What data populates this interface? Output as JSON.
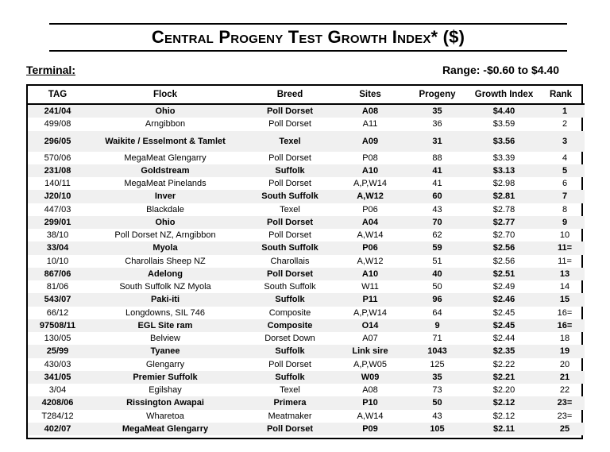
{
  "title": {
    "first_C": "C",
    "word1": "entral",
    "first_P": "P",
    "word2": "rogeny",
    "first_T": "T",
    "word3": "est",
    "first_G": "G",
    "word4": "rowth",
    "first_I": "I",
    "word5": "ndex",
    "suffix": "* ($)"
  },
  "section_label": "Terminal:",
  "range_label": "Range: -$0.60 to $4.40",
  "table": {
    "headers": {
      "tag": "TAG",
      "flock": "Flock",
      "breed": "Breed",
      "sites": "Sites",
      "progeny": "Progeny",
      "growth_index": "Growth Index",
      "rank": "Rank"
    },
    "rows": [
      {
        "tag": "241/04",
        "flock": "Ohio",
        "breed": "Poll Dorset",
        "sites": "A08",
        "progeny": "35",
        "growth_index": "$4.40",
        "rank": "1"
      },
      {
        "tag": "499/08",
        "flock": "Arngibbon",
        "breed": "Poll Dorset",
        "sites": "A11",
        "progeny": "36",
        "growth_index": "$3.59",
        "rank": "2"
      },
      {
        "tag": "296/05",
        "flock": "Waikite / Esselmont & Tamlet",
        "breed": "Texel",
        "sites": "A09",
        "progeny": "31",
        "growth_index": "$3.56",
        "rank": "3"
      },
      {
        "tag": "570/06",
        "flock": "MegaMeat Glengarry",
        "breed": "Poll Dorset",
        "sites": "P08",
        "progeny": "88",
        "growth_index": "$3.39",
        "rank": "4"
      },
      {
        "tag": "231/08",
        "flock": "Goldstream",
        "breed": "Suffolk",
        "sites": "A10",
        "progeny": "41",
        "growth_index": "$3.13",
        "rank": "5"
      },
      {
        "tag": "140/11",
        "flock": "MegaMeat Pinelands",
        "breed": "Poll Dorset",
        "sites": "A,P,W14",
        "progeny": "41",
        "growth_index": "$2.98",
        "rank": "6"
      },
      {
        "tag": "J20/10",
        "flock": "Inver",
        "breed": "South Suffolk",
        "sites": "A,W12",
        "progeny": "60",
        "growth_index": "$2.81",
        "rank": "7"
      },
      {
        "tag": "447/03",
        "flock": "Blackdale",
        "breed": "Texel",
        "sites": "P06",
        "progeny": "43",
        "growth_index": "$2.78",
        "rank": "8"
      },
      {
        "tag": "299/01",
        "flock": "Ohio",
        "breed": "Poll Dorset",
        "sites": "A04",
        "progeny": "70",
        "growth_index": "$2.77",
        "rank": "9"
      },
      {
        "tag": "38/10",
        "flock": "Poll Dorset NZ, Arngibbon",
        "breed": "Poll Dorset",
        "sites": "A,W14",
        "progeny": "62",
        "growth_index": "$2.70",
        "rank": "10"
      },
      {
        "tag": "33/04",
        "flock": "Myola",
        "breed": "South Suffolk",
        "sites": "P06",
        "progeny": "59",
        "growth_index": "$2.56",
        "rank": "11="
      },
      {
        "tag": "10/10",
        "flock": "Charollais Sheep NZ",
        "breed": "Charollais",
        "sites": "A,W12",
        "progeny": "51",
        "growth_index": "$2.56",
        "rank": "11="
      },
      {
        "tag": "867/06",
        "flock": "Adelong",
        "breed": "Poll Dorset",
        "sites": "A10",
        "progeny": "40",
        "growth_index": "$2.51",
        "rank": "13"
      },
      {
        "tag": "81/06",
        "flock": "South Suffolk NZ Myola",
        "breed": "South Suffolk",
        "sites": "W11",
        "progeny": "50",
        "growth_index": "$2.49",
        "rank": "14"
      },
      {
        "tag": "543/07",
        "flock": "Paki-iti",
        "breed": "Suffolk",
        "sites": "P11",
        "progeny": "96",
        "growth_index": "$2.46",
        "rank": "15"
      },
      {
        "tag": "66/12",
        "flock": "Longdowns, SIL 746",
        "breed": "Composite",
        "sites": "A,P,W14",
        "progeny": "64",
        "growth_index": "$2.45",
        "rank": "16="
      },
      {
        "tag": "97508/11",
        "flock": "EGL Site ram",
        "breed": "Composite",
        "sites": "O14",
        "progeny": "9",
        "growth_index": "$2.45",
        "rank": "16="
      },
      {
        "tag": "130/05",
        "flock": "Belview",
        "breed": "Dorset Down",
        "sites": "A07",
        "progeny": "71",
        "growth_index": "$2.44",
        "rank": "18"
      },
      {
        "tag": "25/99",
        "flock": "Tyanee",
        "breed": "Suffolk",
        "sites": "Link sire",
        "progeny": "1043",
        "growth_index": "$2.35",
        "rank": "19"
      },
      {
        "tag": "430/03",
        "flock": "Glengarry",
        "breed": "Poll Dorset",
        "sites": "A,P,W05",
        "progeny": "125",
        "growth_index": "$2.22",
        "rank": "20"
      },
      {
        "tag": "341/05",
        "flock": "Premier Suffolk",
        "breed": "Suffolk",
        "sites": "W09",
        "progeny": "35",
        "growth_index": "$2.21",
        "rank": "21"
      },
      {
        "tag": "3/04",
        "flock": "Egilshay",
        "breed": "Texel",
        "sites": "A08",
        "progeny": "73",
        "growth_index": "$2.20",
        "rank": "22"
      },
      {
        "tag": "4208/06",
        "flock": "Rissington Awapai",
        "breed": "Primera",
        "sites": "P10",
        "progeny": "50",
        "growth_index": "$2.12",
        "rank": "23="
      },
      {
        "tag": "T284/12",
        "flock": "Wharetoa",
        "breed": "Meatmaker",
        "sites": "A,W14",
        "progeny": "43",
        "growth_index": "$2.12",
        "rank": "23="
      },
      {
        "tag": "402/07",
        "flock": "MegaMeat Glengarry",
        "breed": "Poll Dorset",
        "sites": "P09",
        "progeny": "105",
        "growth_index": "$2.11",
        "rank": "25"
      }
    ]
  }
}
